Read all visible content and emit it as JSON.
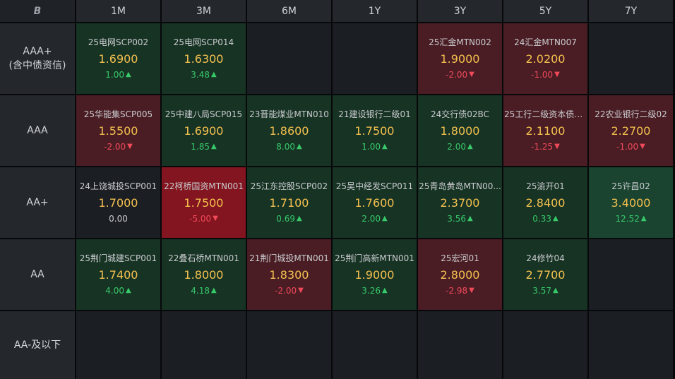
{
  "corner_logo": "B",
  "columns": [
    "1M",
    "3M",
    "6M",
    "1Y",
    "3Y",
    "5Y",
    "7Y"
  ],
  "rows": [
    {
      "label": "AAA+",
      "sublabel": "(含中债资信)"
    },
    {
      "label": "AAA",
      "sublabel": ""
    },
    {
      "label": "AA+",
      "sublabel": ""
    },
    {
      "label": "AA",
      "sublabel": ""
    },
    {
      "label": "AA-及以下",
      "sublabel": ""
    }
  ],
  "colors": {
    "dark_green": "#173324",
    "mid_green": "#1a4330",
    "dark_red": "#4a1d24",
    "bright_red": "#82151f",
    "empty": "#1b1e23",
    "yield": "#f4c14f",
    "up": "#37c96a",
    "down": "#f0495a"
  },
  "cells": [
    [
      {
        "name": "25电网SCP002",
        "yield": "1.6900",
        "change": "1.00",
        "dir": "up",
        "tone": "gd"
      },
      {
        "name": "25电网SCP014",
        "yield": "1.6300",
        "change": "3.48",
        "dir": "up",
        "tone": "gd"
      },
      null,
      null,
      {
        "name": "25汇金MTN002",
        "yield": "1.9000",
        "change": "-2.00",
        "dir": "down",
        "tone": "rd"
      },
      {
        "name": "24汇金MTN007",
        "yield": "2.0200",
        "change": "-1.00",
        "dir": "down",
        "tone": "rd"
      },
      null
    ],
    [
      {
        "name": "25华能集SCP005",
        "yield": "1.5500",
        "change": "-2.00",
        "dir": "down",
        "tone": "rd"
      },
      {
        "name": "25中建八局SCP015",
        "yield": "1.6900",
        "change": "1.85",
        "dir": "up",
        "tone": "gd"
      },
      {
        "name": "23晋能煤业MTN010",
        "yield": "1.8600",
        "change": "8.00",
        "dir": "up",
        "tone": "gd"
      },
      {
        "name": "21建设银行二级01",
        "yield": "1.7500",
        "change": "1.00",
        "dir": "up",
        "tone": "gd"
      },
      {
        "name": "24交行债02BC",
        "yield": "1.8000",
        "change": "2.00",
        "dir": "up",
        "tone": "gd"
      },
      {
        "name": "25工行二级资本债0...",
        "yield": "2.1100",
        "change": "-1.25",
        "dir": "down",
        "tone": "rd"
      },
      {
        "name": "22农业银行二级02",
        "yield": "2.2700",
        "change": "-1.00",
        "dir": "down",
        "tone": "rd"
      }
    ],
    [
      {
        "name": "24上饶城投SCP001",
        "yield": "1.7000",
        "change": "0.00",
        "dir": "flat",
        "tone": "none"
      },
      {
        "name": "22柯桥国资MTN001",
        "yield": "1.7500",
        "change": "-5.00",
        "dir": "down",
        "tone": "rb"
      },
      {
        "name": "25江东控股SCP002",
        "yield": "1.7100",
        "change": "0.69",
        "dir": "up",
        "tone": "gd"
      },
      {
        "name": "25吴中经发SCP011",
        "yield": "1.7600",
        "change": "2.00",
        "dir": "up",
        "tone": "gd"
      },
      {
        "name": "25青岛黄岛MTN00...",
        "yield": "2.3700",
        "change": "3.56",
        "dir": "up",
        "tone": "gd"
      },
      {
        "name": "25渝开01",
        "yield": "2.8400",
        "change": "0.33",
        "dir": "up",
        "tone": "gd"
      },
      {
        "name": "25许昌02",
        "yield": "3.4000",
        "change": "12.52",
        "dir": "up",
        "tone": "gm"
      }
    ],
    [
      {
        "name": "25荆门城建SCP001",
        "yield": "1.7400",
        "change": "4.00",
        "dir": "up",
        "tone": "gd"
      },
      {
        "name": "22叠石桥MTN001",
        "yield": "1.8000",
        "change": "4.18",
        "dir": "up",
        "tone": "gd"
      },
      {
        "name": "21荆门城投MTN001",
        "yield": "1.8300",
        "change": "-2.00",
        "dir": "down",
        "tone": "rd"
      },
      {
        "name": "25荆门高新MTN001",
        "yield": "1.9000",
        "change": "3.26",
        "dir": "up",
        "tone": "gd"
      },
      {
        "name": "25宏河01",
        "yield": "2.8000",
        "change": "-2.98",
        "dir": "down",
        "tone": "rd"
      },
      {
        "name": "24修竹04",
        "yield": "2.7700",
        "change": "3.57",
        "dir": "up",
        "tone": "gd"
      },
      null
    ],
    [
      null,
      null,
      null,
      null,
      null,
      null,
      null
    ]
  ]
}
